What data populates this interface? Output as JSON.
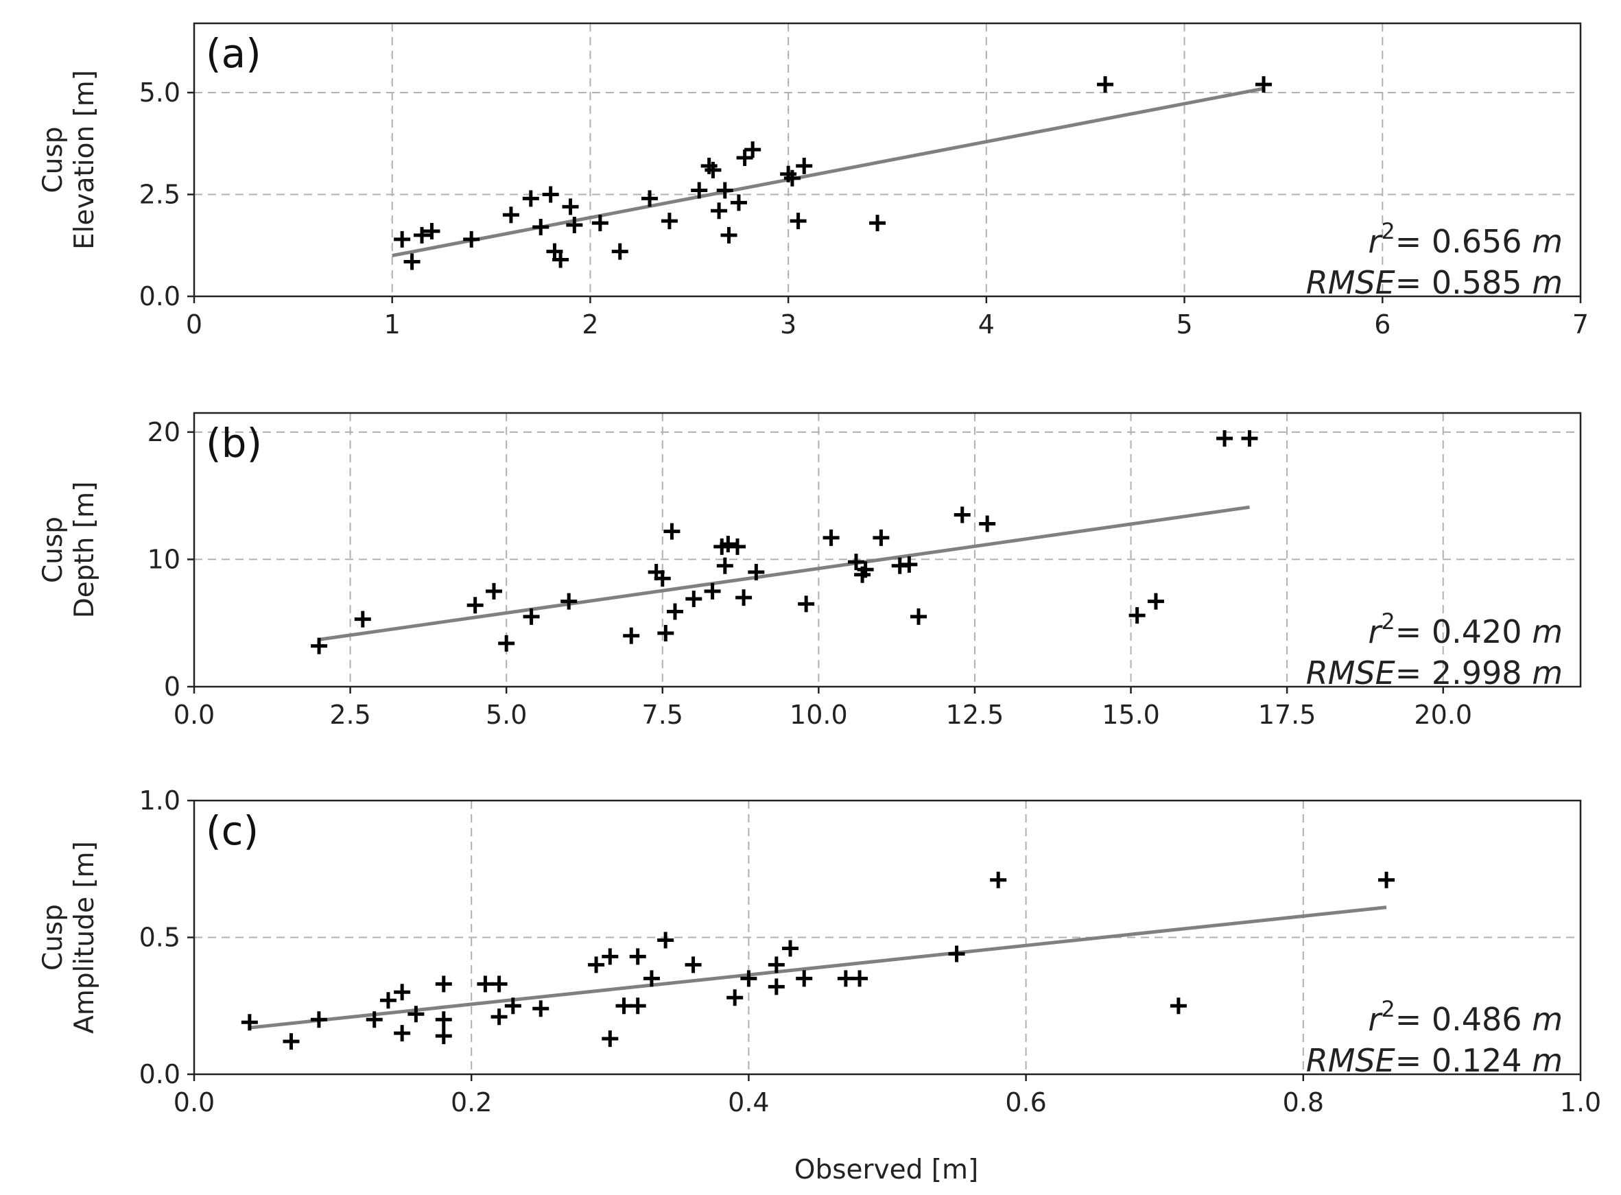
{
  "x_label": "Observed [m]",
  "chart_data": [
    {
      "type": "scatter",
      "panel_label": "(a)",
      "ylabel_lines": [
        "Cusp",
        "Elevation [m]"
      ],
      "xlim": [
        0,
        7
      ],
      "ylim": [
        0,
        6.7
      ],
      "xticks": [
        0,
        1,
        2,
        3,
        4,
        5,
        6,
        7
      ],
      "xtick_labels": [
        "0",
        "1",
        "2",
        "3",
        "4",
        "5",
        "6",
        "7"
      ],
      "yticks": [
        0,
        2.5,
        5.0
      ],
      "ytick_labels": [
        "0.0",
        "2.5",
        "5.0"
      ],
      "fit_line": {
        "x": [
          1.0,
          5.4
        ],
        "y": [
          1.0,
          5.1
        ]
      },
      "r2_label": "r",
      "r2_sup": "2",
      "r2_value": "= 0.656",
      "rmse_label": "RMSE",
      "rmse_value": "= 0.585",
      "unit": "m",
      "points": [
        [
          1.05,
          1.4
        ],
        [
          1.1,
          0.85
        ],
        [
          1.15,
          1.5
        ],
        [
          1.2,
          1.6
        ],
        [
          1.4,
          1.4
        ],
        [
          1.6,
          2.0
        ],
        [
          1.7,
          2.4
        ],
        [
          1.75,
          1.7
        ],
        [
          1.8,
          2.5
        ],
        [
          1.82,
          1.1
        ],
        [
          1.85,
          0.9
        ],
        [
          1.9,
          2.2
        ],
        [
          1.92,
          1.75
        ],
        [
          2.05,
          1.8
        ],
        [
          2.15,
          1.1
        ],
        [
          2.3,
          2.4
        ],
        [
          2.4,
          1.85
        ],
        [
          2.55,
          2.6
        ],
        [
          2.6,
          3.2
        ],
        [
          2.62,
          3.1
        ],
        [
          2.65,
          2.1
        ],
        [
          2.68,
          2.6
        ],
        [
          2.7,
          1.5
        ],
        [
          2.75,
          2.3
        ],
        [
          2.78,
          3.4
        ],
        [
          2.82,
          3.6
        ],
        [
          3.0,
          3.0
        ],
        [
          3.02,
          2.9
        ],
        [
          3.05,
          1.85
        ],
        [
          3.08,
          3.2
        ],
        [
          3.45,
          1.8
        ],
        [
          4.6,
          5.2
        ],
        [
          5.4,
          5.2
        ]
      ]
    },
    {
      "type": "scatter",
      "panel_label": "(b)",
      "ylabel_lines": [
        "Cusp",
        "Depth [m]"
      ],
      "xlim": [
        0,
        22.2
      ],
      "ylim": [
        0,
        21.5
      ],
      "xticks": [
        0,
        2.5,
        5.0,
        7.5,
        10.0,
        12.5,
        15.0,
        17.5,
        20.0
      ],
      "xtick_labels": [
        "0.0",
        "2.5",
        "5.0",
        "7.5",
        "10.0",
        "12.5",
        "15.0",
        "17.5",
        "20.0"
      ],
      "yticks": [
        0,
        10,
        20
      ],
      "ytick_labels": [
        "0",
        "10",
        "20"
      ],
      "fit_line": {
        "x": [
          2.0,
          16.9
        ],
        "y": [
          3.7,
          14.1
        ]
      },
      "r2_label": "r",
      "r2_sup": "2",
      "r2_value": "= 0.420",
      "rmse_label": "RMSE",
      "rmse_value": "= 2.998",
      "unit": "m",
      "points": [
        [
          2.0,
          3.2
        ],
        [
          2.7,
          5.3
        ],
        [
          4.5,
          6.4
        ],
        [
          4.8,
          7.5
        ],
        [
          5.0,
          3.4
        ],
        [
          5.4,
          5.5
        ],
        [
          6.0,
          6.7
        ],
        [
          7.0,
          4.0
        ],
        [
          7.4,
          9.0
        ],
        [
          7.5,
          8.5
        ],
        [
          7.55,
          4.2
        ],
        [
          7.65,
          12.2
        ],
        [
          7.7,
          5.9
        ],
        [
          8.0,
          6.9
        ],
        [
          8.3,
          7.5
        ],
        [
          8.45,
          11.0
        ],
        [
          8.5,
          9.5
        ],
        [
          8.55,
          11.2
        ],
        [
          8.7,
          11.0
        ],
        [
          8.8,
          7.0
        ],
        [
          9.0,
          9.0
        ],
        [
          9.8,
          6.5
        ],
        [
          10.2,
          11.7
        ],
        [
          10.6,
          9.8
        ],
        [
          10.7,
          8.8
        ],
        [
          10.75,
          9.2
        ],
        [
          11.0,
          11.7
        ],
        [
          11.3,
          9.5
        ],
        [
          11.45,
          9.6
        ],
        [
          11.6,
          5.5
        ],
        [
          12.3,
          13.5
        ],
        [
          12.7,
          12.8
        ],
        [
          15.1,
          5.6
        ],
        [
          15.4,
          6.7
        ],
        [
          16.5,
          19.5
        ],
        [
          16.9,
          19.5
        ]
      ]
    },
    {
      "type": "scatter",
      "panel_label": "(c)",
      "ylabel_lines": [
        "Cusp",
        "Amplitude [m]"
      ],
      "xlim": [
        0,
        1.0
      ],
      "ylim": [
        0,
        1.0
      ],
      "xticks": [
        0,
        0.2,
        0.4,
        0.6,
        0.8,
        1.0
      ],
      "xtick_labels": [
        "0.0",
        "0.2",
        "0.4",
        "0.6",
        "0.8",
        "1.0"
      ],
      "yticks": [
        0,
        0.5,
        1.0
      ],
      "ytick_labels": [
        "0.0",
        "0.5",
        "1.0"
      ],
      "fit_line": {
        "x": [
          0.04,
          0.86
        ],
        "y": [
          0.17,
          0.61
        ]
      },
      "r2_label": "r",
      "r2_sup": "2",
      "r2_value": "= 0.486",
      "rmse_label": "RMSE",
      "rmse_value": "= 0.124",
      "unit": "m",
      "points": [
        [
          0.04,
          0.19
        ],
        [
          0.07,
          0.12
        ],
        [
          0.09,
          0.2
        ],
        [
          0.13,
          0.2
        ],
        [
          0.14,
          0.27
        ],
        [
          0.15,
          0.3
        ],
        [
          0.15,
          0.15
        ],
        [
          0.16,
          0.22
        ],
        [
          0.18,
          0.33
        ],
        [
          0.18,
          0.2
        ],
        [
          0.18,
          0.14
        ],
        [
          0.21,
          0.33
        ],
        [
          0.22,
          0.33
        ],
        [
          0.22,
          0.21
        ],
        [
          0.23,
          0.25
        ],
        [
          0.25,
          0.24
        ],
        [
          0.29,
          0.4
        ],
        [
          0.3,
          0.43
        ],
        [
          0.3,
          0.13
        ],
        [
          0.31,
          0.25
        ],
        [
          0.32,
          0.43
        ],
        [
          0.32,
          0.25
        ],
        [
          0.33,
          0.35
        ],
        [
          0.34,
          0.49
        ],
        [
          0.36,
          0.4
        ],
        [
          0.39,
          0.28
        ],
        [
          0.4,
          0.35
        ],
        [
          0.42,
          0.32
        ],
        [
          0.42,
          0.4
        ],
        [
          0.43,
          0.46
        ],
        [
          0.44,
          0.35
        ],
        [
          0.47,
          0.35
        ],
        [
          0.48,
          0.35
        ],
        [
          0.55,
          0.44
        ],
        [
          0.58,
          0.71
        ],
        [
          0.71,
          0.25
        ],
        [
          0.86,
          0.71
        ]
      ]
    }
  ]
}
